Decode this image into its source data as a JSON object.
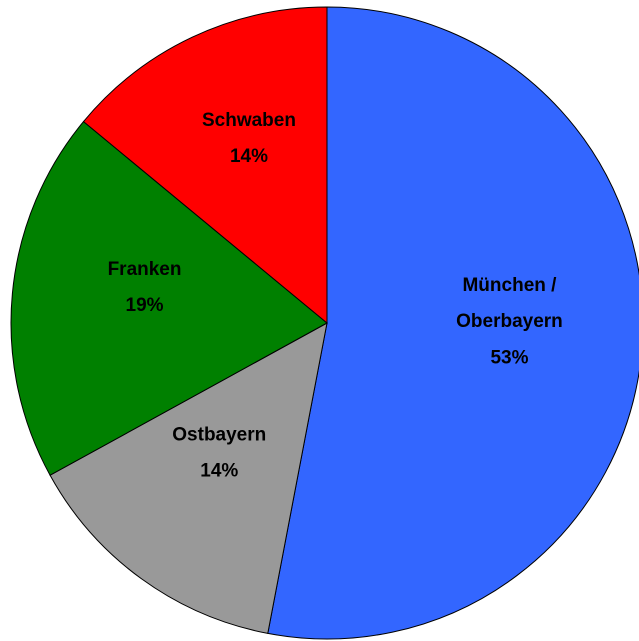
{
  "chart_data": {
    "type": "pie",
    "categories": [
      "München / Oberbayern",
      "Ostbayern",
      "Franken",
      "Schwaben"
    ],
    "values": [
      53,
      14,
      19,
      14
    ],
    "value_labels": [
      "53%",
      "14%",
      "19%",
      "14%"
    ],
    "colors": [
      "#3366ff",
      "#999999",
      "#008000",
      "#ff0000"
    ]
  }
}
